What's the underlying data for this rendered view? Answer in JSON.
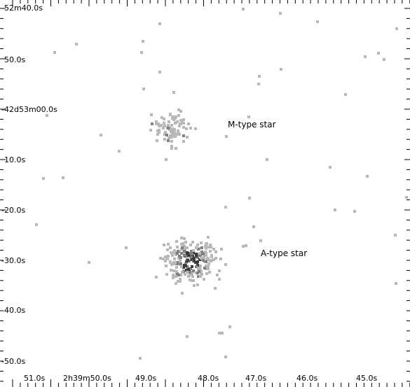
{
  "y_ticks": [
    {
      "label": "52m40.0s"
    },
    {
      "label": "50.0s"
    },
    {
      "label": "-42d53m00.0s"
    },
    {
      "label": "10.0s"
    },
    {
      "label": "-20.0s"
    },
    {
      "label": "-30.0s"
    },
    {
      "label": "-40.0s"
    },
    {
      "label": "-50.0s"
    }
  ],
  "x_ticks": [
    {
      "label": "51.0s"
    },
    {
      "label": "2h39m50.0s"
    },
    {
      "label": "49.0s"
    },
    {
      "label": "48.0s"
    },
    {
      "label": "47.0s"
    },
    {
      "label": "46.0s"
    },
    {
      "label": "45.0s"
    }
  ],
  "sources": [
    {
      "name": "M-type star"
    },
    {
      "name": "A-type star"
    }
  ],
  "colors": {
    "background": "#ffffff",
    "axis": "#000000",
    "photon_light": "#b8b8b8",
    "photon_mid": "#808080",
    "photon_dark": "#3a3a3a"
  }
}
